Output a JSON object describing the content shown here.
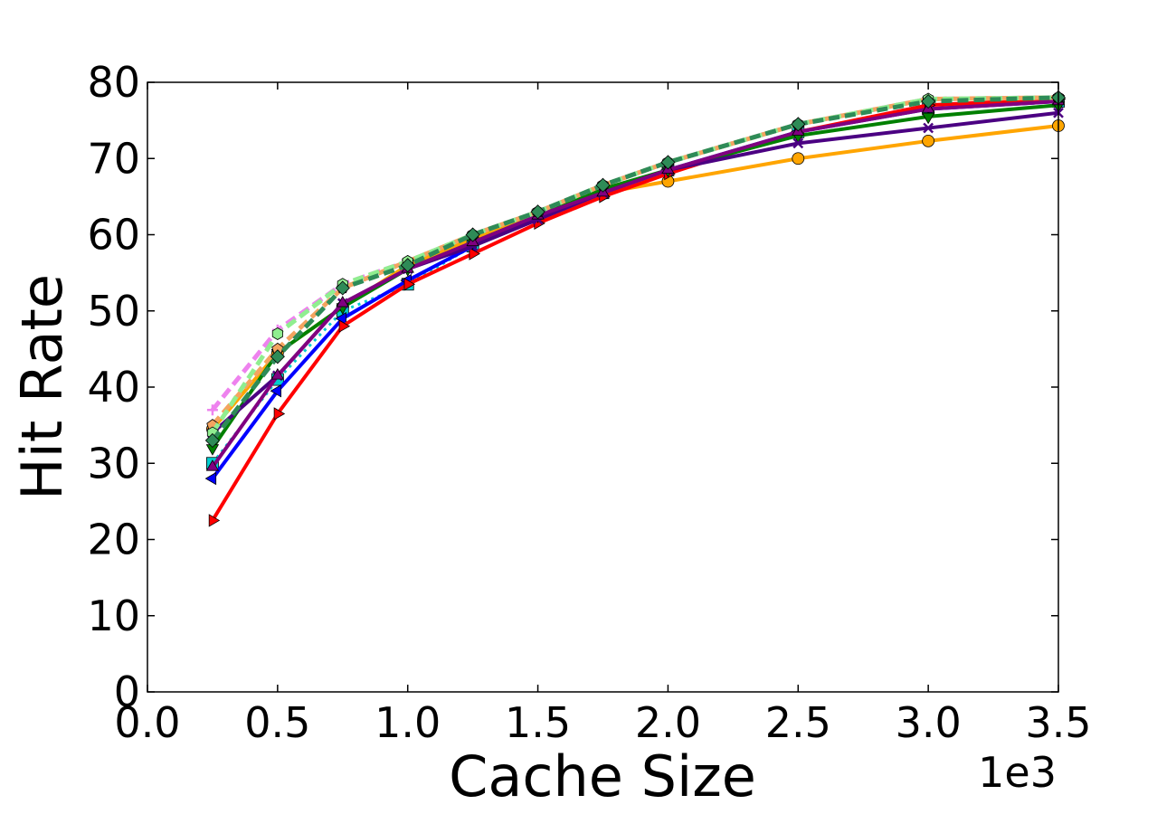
{
  "chart_data": {
    "type": "line",
    "title": "",
    "xlabel": "Cache Size",
    "ylabel": "Hit Rate",
    "x_offset_label": "1e3",
    "xlim": [
      0.0,
      3.5
    ],
    "ylim": [
      0,
      80
    ],
    "x_ticks": [
      "0.0",
      "0.5",
      "1.0",
      "1.5",
      "2.0",
      "2.5",
      "3.0",
      "3.5"
    ],
    "y_ticks": [
      "0",
      "10",
      "20",
      "30",
      "40",
      "50",
      "60",
      "70",
      "80"
    ],
    "grid": false,
    "legend": "none",
    "x": [
      0.25,
      0.5,
      0.75,
      1.0,
      1.25,
      1.5,
      1.75,
      2.0,
      2.5,
      3.0,
      3.5
    ],
    "series": [
      {
        "values": [
          34.5,
          44.5,
          50.5,
          56.0,
          59.5,
          62.5,
          65.5,
          67.0,
          70.0,
          72.3,
          74.3
        ],
        "color": "#ffa500",
        "marker": "circle",
        "dash": "solid"
      },
      {
        "values": [
          30.0,
          41.0,
          50.0,
          53.5,
          58.5,
          62.5,
          65.5,
          68.5,
          73.5,
          76.5,
          77.5
        ],
        "color": "#00ced1",
        "marker": "square",
        "dash": "dotted"
      },
      {
        "values": [
          28.0,
          39.5,
          49.0,
          54.0,
          58.5,
          62.5,
          65.5,
          68.5,
          73.5,
          76.5,
          77.5
        ],
        "color": "#0000ff",
        "marker": "triangle-left",
        "dash": "solid"
      },
      {
        "values": [
          22.5,
          36.5,
          48.0,
          53.5,
          57.5,
          61.5,
          65.0,
          68.0,
          73.5,
          77.0,
          77.8
        ],
        "color": "#ff0000",
        "marker": "triangle-right",
        "dash": "solid"
      },
      {
        "values": [
          32.0,
          44.5,
          50.5,
          55.5,
          59.0,
          62.5,
          66.0,
          68.5,
          73.0,
          75.5,
          77.0
        ],
        "color": "#008000",
        "marker": "triangle-down",
        "dash": "solid"
      },
      {
        "values": [
          34.0,
          41.5,
          51.0,
          55.5,
          58.5,
          62.0,
          65.5,
          68.5,
          72.0,
          74.0,
          76.0
        ],
        "color": "#4b0082",
        "marker": "x",
        "dash": "solid"
      },
      {
        "values": [
          29.5,
          41.5,
          51.0,
          55.5,
          59.0,
          62.5,
          65.5,
          68.5,
          73.5,
          76.5,
          77.5
        ],
        "color": "#800080",
        "marker": "triangle-up",
        "dash": "solid"
      },
      {
        "values": [
          37.0,
          47.5,
          53.5,
          56.5,
          60.0,
          63.0,
          66.5,
          69.5,
          74.5,
          77.8,
          78.0
        ],
        "color": "#ee82ee",
        "marker": "plus",
        "dash": "dashed"
      },
      {
        "values": [
          35.0,
          45.0,
          53.0,
          56.5,
          60.0,
          63.0,
          66.5,
          69.5,
          74.5,
          77.8,
          78.0
        ],
        "color": "#f4a460",
        "marker": "pentagon",
        "dash": "dashed"
      },
      {
        "values": [
          34.0,
          47.0,
          53.5,
          56.5,
          60.0,
          63.0,
          66.5,
          69.5,
          74.5,
          77.8,
          78.0
        ],
        "color": "#90ee90",
        "marker": "hexagon",
        "dash": "dashed"
      },
      {
        "values": [
          33.0,
          44.0,
          53.0,
          56.0,
          60.0,
          63.0,
          66.5,
          69.5,
          74.5,
          77.5,
          78.0
        ],
        "color": "#2e8b57",
        "marker": "diamond",
        "dash": "dashed"
      }
    ]
  }
}
